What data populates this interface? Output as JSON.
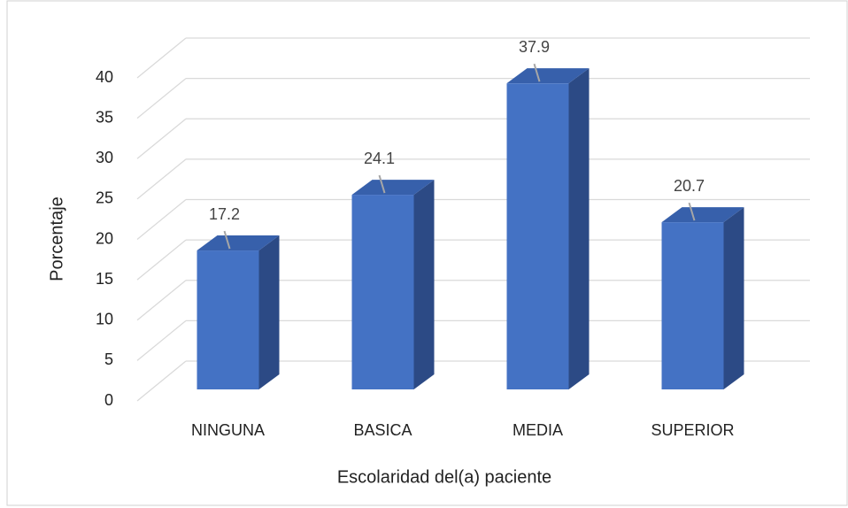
{
  "chart_data": {
    "type": "bar3d",
    "x_label": "Escolaridad del(a) paciente",
    "y_label": "Porcentaje",
    "categories": [
      "NINGUNA",
      "BASICA",
      "MEDIA",
      "SUPERIOR"
    ],
    "values": [
      17.2,
      24.1,
      37.9,
      20.7
    ],
    "color": "#4472c4",
    "ylim": [
      0,
      40
    ],
    "yticks": [
      0,
      5,
      10,
      15,
      20,
      25,
      30,
      35,
      40
    ],
    "grid": true
  }
}
